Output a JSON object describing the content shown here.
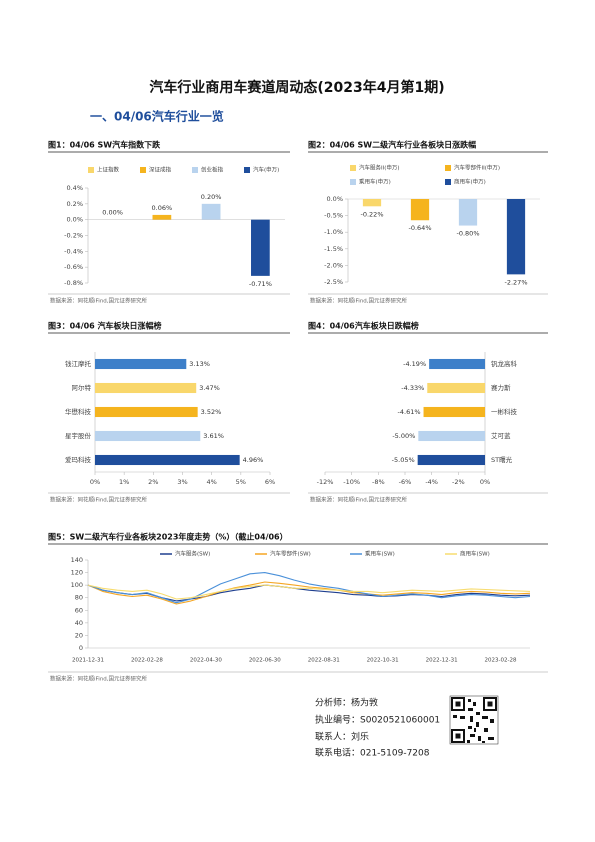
{
  "title": "汽车行业商用车赛道周动态(2023年4月第1期)",
  "section": "一、04/06汽车行业一览",
  "analyst": [
    "分析师：杨为敩",
    "执业编号：S0020521060001",
    "联系人：刘乐",
    "联系电话：021-5109-7208"
  ],
  "chart_data": [
    {
      "type": "bar",
      "title": "图1：04/06 SW汽车指数下跌",
      "source": "数据来源：同花顺iFind,国元证券研究所",
      "categories": [
        "上证指数",
        "深证成指",
        "创业板指",
        "汽车(申万)"
      ],
      "values": [
        0.0,
        0.06,
        0.2,
        -0.71
      ],
      "value_labels": [
        "0.00%",
        "0.06%",
        "0.20%",
        "-0.71%"
      ],
      "colors": [
        "#f9d76b",
        "#f5b41e",
        "#b9d3ee",
        "#1f4e9c"
      ],
      "legend": true,
      "ylim": [
        -0.8,
        0.4
      ],
      "yticks": [
        {
          "value": 0.4,
          "label": "0.4%"
        },
        {
          "value": 0.2,
          "label": "0.2%"
        },
        {
          "value": 0,
          "label": "0.0%"
        },
        {
          "value": -0.2,
          "label": "-0.2%"
        },
        {
          "value": -0.4,
          "label": "-0.4%"
        },
        {
          "value": -0.6,
          "label": "-0.6%"
        },
        {
          "value": -0.8,
          "label": "-0.8%"
        }
      ]
    },
    {
      "type": "bar",
      "title": "图2：04/06 SW二级汽车行业各板块日涨跌幅",
      "source": "数据来源：同花顺iFind,国元证券研究所",
      "categories": [
        "汽车服务II(申万)",
        "汽车零部件II(申万)",
        "乘用车(申万)",
        "商用车(申万)"
      ],
      "values": [
        -0.22,
        -0.64,
        -0.8,
        -2.27
      ],
      "value_labels": [
        "-0.22%",
        "-0.64%",
        "-0.80%",
        "-2.27%"
      ],
      "colors": [
        "#f9d76b",
        "#f5b41e",
        "#b9d3ee",
        "#1f4e9c"
      ],
      "legend": true,
      "ylim": [
        -2.5,
        0
      ],
      "yticks": [
        {
          "value": 0,
          "label": "0.0%"
        },
        {
          "value": -0.5,
          "label": "-0.5%"
        },
        {
          "value": -1,
          "label": "-1.0%"
        },
        {
          "value": -1.5,
          "label": "-1.5%"
        },
        {
          "value": -2,
          "label": "-2.0%"
        },
        {
          "value": -2.5,
          "label": "-2.5%"
        }
      ]
    },
    {
      "type": "barh",
      "title": "图3：04/06 汽车板块日涨幅榜",
      "source": "数据来源：同花顺iFind,国元证券研究所",
      "categories": [
        "钱江摩托",
        "阿尔特",
        "华懋科技",
        "星宇股份",
        "爱玛科技"
      ],
      "values": [
        3.13,
        3.47,
        3.52,
        3.61,
        4.96
      ],
      "value_labels": [
        "3.13%",
        "3.47%",
        "3.52%",
        "3.61%",
        "4.96%"
      ],
      "colors": [
        "#3d7fc9",
        "#f9d76b",
        "#f5b41e",
        "#b9d3ee",
        "#1f4e9c"
      ],
      "xlim": [
        0,
        6
      ],
      "xticks": [
        {
          "value": 0,
          "label": "0%"
        },
        {
          "value": 1,
          "label": "1%"
        },
        {
          "value": 2,
          "label": "2%"
        },
        {
          "value": 3,
          "label": "3%"
        },
        {
          "value": 4,
          "label": "4%"
        },
        {
          "value": 5,
          "label": "5%"
        },
        {
          "value": 6,
          "label": "6%"
        }
      ]
    },
    {
      "type": "barh",
      "title": "图4：04/06汽车板块日跌幅榜",
      "source": "数据来源：同花顺iFind,国元证券研究所",
      "categories": [
        "钒龙高科",
        "赛力斯",
        "一彬科技",
        "艾可蓝",
        "ST曙光"
      ],
      "values": [
        -4.19,
        -4.33,
        -4.61,
        -5.0,
        -5.05
      ],
      "value_labels": [
        "-4.19%",
        "-4.33%",
        "-4.61%",
        "-5.00%",
        "-5.05%"
      ],
      "colors": [
        "#3d7fc9",
        "#f9d76b",
        "#f5b41e",
        "#b9d3ee",
        "#1f4e9c"
      ],
      "xlim": [
        -12,
        0
      ],
      "xticks": [
        {
          "value": -12,
          "label": "-12%"
        },
        {
          "value": -10,
          "label": "-10%"
        },
        {
          "value": -8,
          "label": "-8%"
        },
        {
          "value": -6,
          "label": "-6%"
        },
        {
          "value": -4,
          "label": "-4%"
        },
        {
          "value": -2,
          "label": "-2%"
        },
        {
          "value": 0,
          "label": "0%"
        }
      ]
    },
    {
      "type": "line",
      "title": "图5：SW二级汽车行业各板块2023年度走势（%）（截止04/06）",
      "source": "数据来源：同花顺iFind,国元证券研究所",
      "categories": [
        "2021-12-31",
        null,
        null,
        null,
        "2022-02-28",
        null,
        null,
        null,
        "2022-04-30",
        null,
        null,
        null,
        "2022-06-30",
        null,
        null,
        null,
        "2022-08-31",
        null,
        null,
        null,
        "2022-10-31",
        null,
        null,
        null,
        "2022-12-31",
        null,
        null,
        null,
        "2023-02-28",
        null,
        null
      ],
      "legend": true,
      "series": [
        {
          "name": "汽车服务(SW)",
          "color": "#1f3f8f",
          "values": [
            100,
            92,
            88,
            85,
            87,
            80,
            75,
            78,
            82,
            88,
            92,
            95,
            100,
            98,
            95,
            92,
            90,
            88,
            85,
            84,
            82,
            83,
            85,
            84,
            82,
            85,
            87,
            86,
            84,
            83,
            84
          ]
        },
        {
          "name": "汽车零部件(SW)",
          "color": "#f5a623",
          "values": [
            100,
            90,
            85,
            82,
            84,
            78,
            70,
            75,
            82,
            90,
            96,
            100,
            105,
            103,
            100,
            97,
            95,
            92,
            88,
            86,
            84,
            86,
            88,
            87,
            85,
            88,
            90,
            89,
            87,
            86,
            87
          ]
        },
        {
          "name": "乘用车(SW)",
          "color": "#4a90d9",
          "values": [
            100,
            92,
            88,
            85,
            88,
            80,
            72,
            78,
            90,
            102,
            110,
            118,
            120,
            115,
            108,
            102,
            98,
            95,
            90,
            86,
            82,
            84,
            86,
            84,
            80,
            83,
            85,
            84,
            82,
            80,
            82
          ]
        },
        {
          "name": "商用车(SW)",
          "color": "#f7dc6f",
          "values": [
            100,
            95,
            92,
            90,
            92,
            86,
            78,
            80,
            85,
            90,
            95,
            98,
            100,
            98,
            95,
            95,
            93,
            92,
            90,
            90,
            88,
            90,
            92,
            91,
            90,
            92,
            94,
            93,
            92,
            91,
            90
          ]
        }
      ],
      "ylim": [
        0,
        140
      ],
      "yticks": [
        0,
        20,
        40,
        60,
        80,
        100,
        120,
        140
      ]
    }
  ]
}
